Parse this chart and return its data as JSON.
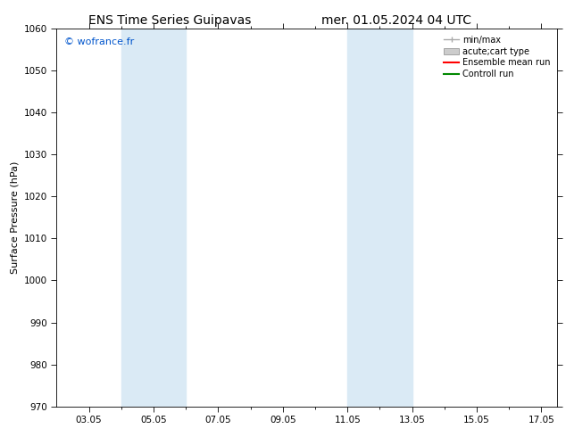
{
  "title_left": "ENS Time Series Guipavas",
  "title_right": "mer. 01.05.2024 04 UTC",
  "ylabel": "Surface Pressure (hPa)",
  "ylim": [
    970,
    1060
  ],
  "yticks": [
    970,
    980,
    990,
    1000,
    1010,
    1020,
    1030,
    1040,
    1050,
    1060
  ],
  "xtick_labels": [
    "03.05",
    "05.05",
    "07.05",
    "09.05",
    "11.05",
    "13.05",
    "15.05",
    "17.05"
  ],
  "xtick_positions": [
    3,
    5,
    7,
    9,
    11,
    13,
    15,
    17
  ],
  "xlim": [
    2.0,
    17.5
  ],
  "shaded_bands": [
    {
      "xmin": 4.0,
      "xmax": 6.0
    },
    {
      "xmin": 11.0,
      "xmax": 13.0
    }
  ],
  "shade_color": "#daeaf5",
  "watermark": "© wofrance.fr",
  "watermark_color": "#0055cc",
  "legend_items": [
    {
      "label": "min/max",
      "color": "#aaaaaa",
      "type": "hline_short"
    },
    {
      "label": "acute;cart type",
      "color": "#cccccc",
      "type": "rect"
    },
    {
      "label": "Ensemble mean run",
      "color": "#ff0000",
      "type": "line"
    },
    {
      "label": "Controll run",
      "color": "#008800",
      "type": "line"
    }
  ],
  "bg_color": "#ffffff",
  "plot_bg_color": "#ffffff",
  "title_fontsize": 10,
  "axis_label_fontsize": 8,
  "tick_fontsize": 7.5,
  "watermark_fontsize": 8,
  "legend_fontsize": 7
}
